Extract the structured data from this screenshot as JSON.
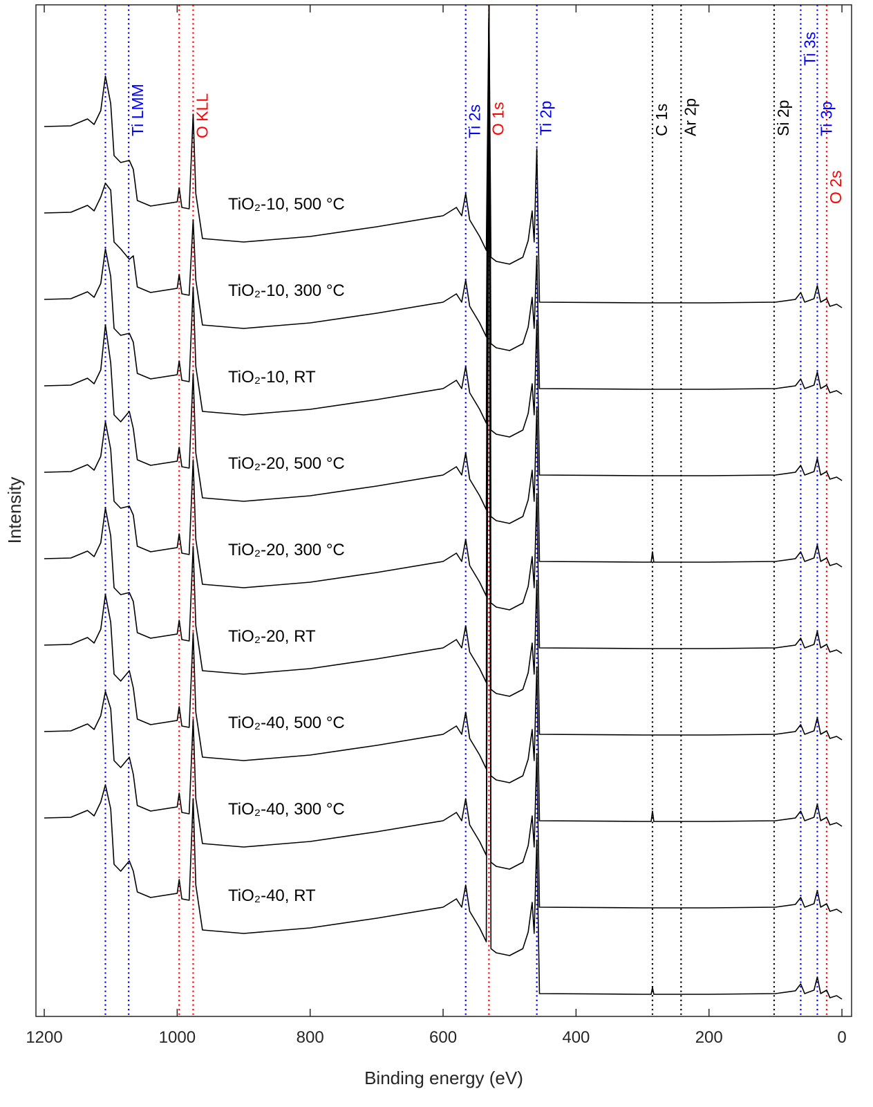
{
  "chart_data": {
    "type": "line",
    "xlabel": "Binding energy (eV)",
    "ylabel": "Intensity",
    "xlim": [
      1212.5,
      -14.5
    ],
    "xticks": [
      1200,
      1000,
      800,
      600,
      400,
      200,
      0
    ],
    "ylim": [
      0,
      1463
    ],
    "x": [
      1200,
      1160,
      1135,
      1125,
      1115,
      1108,
      1100,
      1095,
      1085,
      1072,
      1066,
      1060,
      1040,
      1000,
      997,
      993,
      982,
      976,
      972,
      962,
      900,
      800,
      700,
      600,
      580,
      572,
      566,
      560,
      545,
      535,
      531,
      528,
      520,
      500,
      480,
      472,
      466,
      463,
      459,
      455,
      300,
      287,
      285,
      283,
      200,
      100,
      70,
      62,
      56,
      42,
      37,
      32,
      23,
      18,
      8,
      0
    ],
    "series": [
      {
        "name": "TiO₂-10, 500 °C",
        "color": "#000000",
        "values": [
          1287,
          1288,
          1298,
          1290,
          1310,
          1360,
          1320,
          1245,
          1235,
          1238,
          1225,
          1180,
          1172,
          1178,
          1198,
          1170,
          1168,
          1305,
          1190,
          1125,
          1120,
          1128,
          1142,
          1158,
          1170,
          1158,
          1190,
          1152,
          1128,
          1108,
          1463,
          1098,
          1092,
          1088,
          1098,
          1122,
          1165,
          1120,
          1255,
          1033,
          1032,
          1032,
          1032,
          1032,
          1032,
          1033,
          1037,
          1047,
          1033,
          1038,
          1057,
          1033,
          1038,
          1027,
          1030,
          1025
        ]
      },
      {
        "name": "TiO₂-10, 300 °C",
        "color": "#000000",
        "values": [
          1162,
          1163,
          1173,
          1165,
          1185,
          1205,
          1195,
          1120,
          1110,
          1095,
          1100,
          1055,
          1047,
          1053,
          1073,
          1045,
          1043,
          1152,
          1065,
          1000,
          995,
          1003,
          1017,
          1033,
          1045,
          1033,
          1065,
          1027,
          1003,
          983,
          1463,
          973,
          967,
          963,
          973,
          997,
          1040,
          995,
          1100,
          908,
          907,
          907,
          907,
          907,
          907,
          908,
          912,
          922,
          908,
          913,
          932,
          908,
          913,
          902,
          905,
          900
        ]
      },
      {
        "name": "TiO₂-10, RT",
        "color": "#000000",
        "values": [
          1037,
          1038,
          1048,
          1040,
          1060,
          1110,
          1070,
          995,
          985,
          988,
          975,
          930,
          922,
          928,
          948,
          920,
          918,
          1055,
          940,
          875,
          870,
          878,
          892,
          908,
          920,
          908,
          940,
          902,
          878,
          858,
          1463,
          848,
          842,
          838,
          848,
          872,
          915,
          870,
          1005,
          783,
          782,
          782,
          782,
          782,
          782,
          783,
          787,
          797,
          783,
          788,
          807,
          783,
          788,
          777,
          780,
          775
        ]
      },
      {
        "name": "TiO₂-20, 500 °C",
        "color": "#000000",
        "values": [
          912,
          913,
          923,
          915,
          935,
          1000,
          945,
          870,
          860,
          875,
          850,
          805,
          797,
          803,
          823,
          795,
          793,
          930,
          815,
          750,
          745,
          753,
          767,
          783,
          795,
          783,
          815,
          777,
          753,
          733,
          1463,
          723,
          717,
          713,
          723,
          747,
          790,
          745,
          880,
          658,
          657,
          657,
          672,
          657,
          657,
          658,
          662,
          672,
          658,
          663,
          682,
          658,
          663,
          652,
          655,
          650
        ]
      },
      {
        "name": "TiO₂-20, 300 °C",
        "color": "#000000",
        "values": [
          787,
          788,
          798,
          790,
          810,
          860,
          820,
          745,
          735,
          738,
          725,
          680,
          672,
          678,
          698,
          670,
          668,
          805,
          690,
          625,
          620,
          628,
          642,
          658,
          670,
          658,
          690,
          652,
          628,
          608,
          1463,
          598,
          592,
          588,
          598,
          622,
          665,
          620,
          755,
          533,
          532,
          532,
          532,
          532,
          532,
          533,
          537,
          547,
          533,
          538,
          557,
          533,
          538,
          527,
          530,
          525
        ]
      },
      {
        "name": "TiO₂-20, RT",
        "color": "#000000",
        "values": [
          662,
          663,
          673,
          665,
          685,
          735,
          695,
          620,
          610,
          613,
          600,
          555,
          547,
          553,
          573,
          545,
          543,
          680,
          565,
          500,
          495,
          503,
          517,
          533,
          545,
          533,
          565,
          527,
          503,
          483,
          1463,
          473,
          467,
          463,
          473,
          497,
          540,
          495,
          630,
          408,
          407,
          407,
          407,
          407,
          407,
          408,
          412,
          422,
          408,
          413,
          432,
          408,
          413,
          402,
          405,
          400
        ]
      },
      {
        "name": "TiO₂-40, 500 °C",
        "color": "#000000",
        "values": [
          537,
          538,
          548,
          540,
          560,
          610,
          570,
          495,
          485,
          500,
          475,
          430,
          422,
          428,
          448,
          420,
          418,
          555,
          440,
          375,
          370,
          378,
          392,
          408,
          420,
          408,
          440,
          402,
          378,
          358,
          1463,
          348,
          342,
          338,
          348,
          372,
          415,
          370,
          505,
          283,
          282,
          282,
          297,
          282,
          282,
          283,
          287,
          297,
          283,
          288,
          307,
          283,
          288,
          277,
          280,
          275
        ]
      },
      {
        "name": "TiO₂-40, 300 °C",
        "color": "#000000",
        "values": [
          412,
          413,
          423,
          415,
          435,
          470,
          445,
          370,
          360,
          375,
          350,
          305,
          297,
          303,
          323,
          295,
          293,
          430,
          315,
          250,
          245,
          253,
          267,
          283,
          295,
          283,
          315,
          277,
          253,
          233,
          1463,
          223,
          217,
          213,
          223,
          247,
          290,
          245,
          380,
          158,
          157,
          157,
          157,
          157,
          157,
          158,
          162,
          172,
          158,
          163,
          182,
          158,
          163,
          152,
          155,
          150
        ]
      },
      {
        "name": "TiO₂-40, RT",
        "color": "#000000",
        "values": [
          287,
          288,
          298,
          290,
          310,
          335,
          300,
          220,
          210,
          225,
          210,
          180,
          172,
          178,
          198,
          170,
          168,
          315,
          190,
          125,
          120,
          128,
          142,
          158,
          170,
          158,
          190,
          152,
          128,
          108,
          1463,
          98,
          92,
          88,
          98,
          122,
          165,
          120,
          255,
          33,
          32,
          32,
          42,
          32,
          32,
          33,
          37,
          47,
          33,
          38,
          57,
          33,
          38,
          27,
          30,
          25
        ]
      }
    ],
    "reference_lines": [
      {
        "x": 1108,
        "color": "#0000ff"
      },
      {
        "x": 1073,
        "color": "#0000ff",
        "label": "Ti LMM"
      },
      {
        "x": 997,
        "color": "#ff0000"
      },
      {
        "x": 976,
        "color": "#ff0000",
        "label": "O KLL"
      },
      {
        "x": 566,
        "color": "#0000ff",
        "label": "Ti 2s"
      },
      {
        "x": 531,
        "color": "#ff0000",
        "label": "O 1s"
      },
      {
        "x": 459,
        "color": "#0000ff",
        "label": "Ti 2p"
      },
      {
        "x": 285,
        "color": "#000000",
        "label": "C 1s"
      },
      {
        "x": 242,
        "color": "#000000",
        "label": "Ar 2p"
      },
      {
        "x": 102,
        "color": "#000000",
        "label": "Si 2p"
      },
      {
        "x": 62,
        "color": "#0000ff",
        "label": "Ti 3s"
      },
      {
        "x": 37,
        "color": "#0000ff",
        "label": "Ti 3p"
      },
      {
        "x": 23,
        "color": "#ff0000",
        "label": "O 2s"
      }
    ]
  }
}
